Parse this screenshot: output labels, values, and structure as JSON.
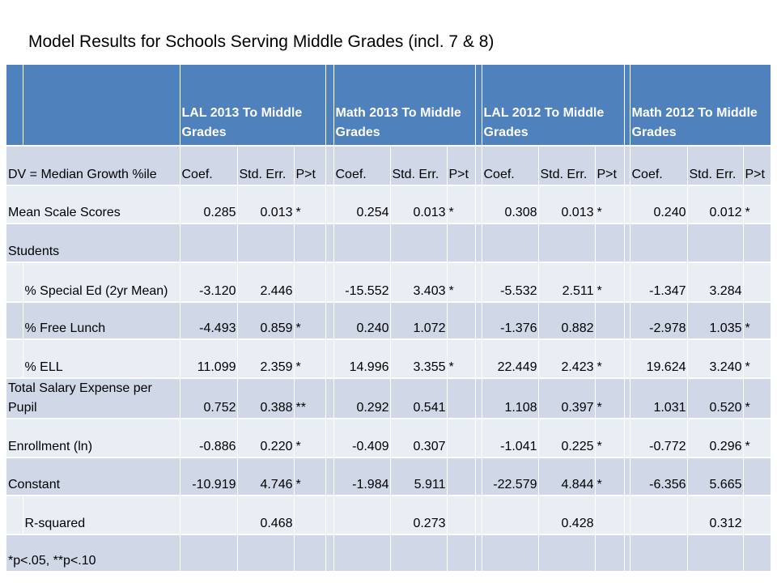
{
  "title": "Model Results for Schools Serving Middle Grades (incl. 7 & 8)",
  "groups": [
    "LAL 2013 To Middle Grades",
    "Math 2013 To Middle Grades",
    "LAL 2012 To Middle Grades",
    "Math 2012 To Middle Grades"
  ],
  "dv_label": "DV = Median Growth %ile",
  "col_headers": {
    "coef": "Coef.",
    "se": "Std. Err.",
    "p": "P>t"
  },
  "rows": [
    {
      "label": "Mean Scale Scores",
      "vals": [
        [
          "0.285",
          "0.013",
          "*"
        ],
        [
          "0.254",
          "0.013",
          "*"
        ],
        [
          "0.308",
          "0.013",
          "*"
        ],
        [
          "0.240",
          "0.012",
          "*"
        ]
      ]
    },
    {
      "label": "Students",
      "vals": [
        [
          "",
          "",
          ""
        ],
        [
          "",
          "",
          ""
        ],
        [
          "",
          "",
          ""
        ],
        [
          "",
          "",
          ""
        ]
      ]
    },
    {
      "label": "% Special Ed (2yr Mean)",
      "vals": [
        [
          "-3.120",
          "2.446",
          ""
        ],
        [
          "-15.552",
          "3.403",
          "*"
        ],
        [
          "-5.532",
          "2.511",
          "*"
        ],
        [
          "-1.347",
          "3.284",
          ""
        ]
      ]
    },
    {
      "label": "% Free Lunch",
      "vals": [
        [
          "-4.493",
          "0.859",
          "*"
        ],
        [
          "0.240",
          "1.072",
          ""
        ],
        [
          "-1.376",
          "0.882",
          ""
        ],
        [
          "-2.978",
          "1.035",
          "*"
        ]
      ]
    },
    {
      "label": "% ELL",
      "vals": [
        [
          "11.099",
          "2.359",
          "*"
        ],
        [
          "14.996",
          "3.355",
          "*"
        ],
        [
          "22.449",
          "2.423",
          "*"
        ],
        [
          "19.624",
          "3.240",
          "*"
        ]
      ]
    },
    {
      "label": "Total Salary Expense per Pupil",
      "vals": [
        [
          "0.752",
          "0.388",
          "**"
        ],
        [
          "0.292",
          "0.541",
          ""
        ],
        [
          "1.108",
          "0.397",
          "*"
        ],
        [
          "1.031",
          "0.520",
          "*"
        ]
      ]
    },
    {
      "label": "Enrollment (ln)",
      "vals": [
        [
          "-0.886",
          "0.220",
          "*"
        ],
        [
          "-0.409",
          "0.307",
          ""
        ],
        [
          "-1.041",
          "0.225",
          "*"
        ],
        [
          "-0.772",
          "0.296",
          "*"
        ]
      ]
    },
    {
      "label": "Constant",
      "vals": [
        [
          "-10.919",
          "4.746",
          "*"
        ],
        [
          "-1.984",
          "5.911",
          ""
        ],
        [
          "-22.579",
          "4.844",
          "*"
        ],
        [
          "-6.356",
          "5.665",
          ""
        ]
      ]
    },
    {
      "label": "R-squared",
      "vals": [
        [
          "",
          "0.468",
          ""
        ],
        [
          "",
          "0.273",
          ""
        ],
        [
          "",
          "0.428",
          ""
        ],
        [
          "",
          "0.312",
          ""
        ]
      ]
    },
    {
      "label": "*p<.05, **p<.10",
      "vals": [
        [
          "",
          "",
          ""
        ],
        [
          "",
          "",
          ""
        ],
        [
          "",
          "",
          ""
        ],
        [
          "",
          "",
          ""
        ]
      ]
    }
  ]
}
